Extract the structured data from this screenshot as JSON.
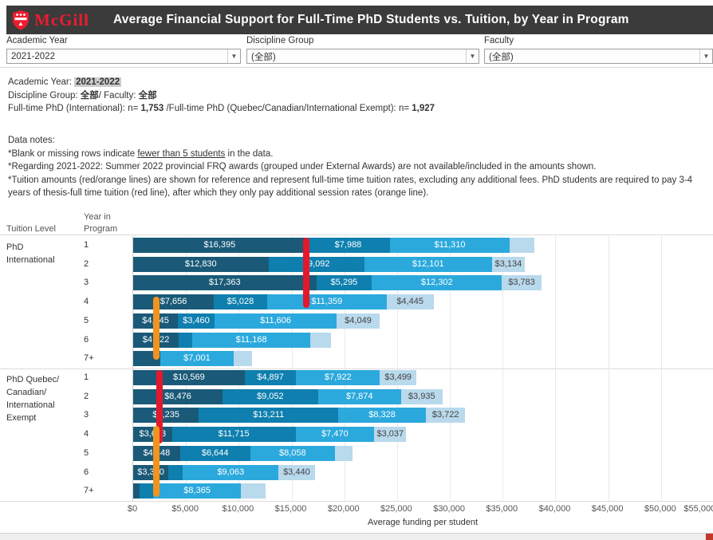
{
  "header": {
    "logo_text": "McGill",
    "title": "Average Financial Support for Full-Time PhD Students vs. Tuition, by Year in Program"
  },
  "filters": [
    {
      "label": "Academic Year",
      "value": "2021-2022"
    },
    {
      "label": "Discipline Group",
      "value": "(全部)"
    },
    {
      "label": "Faculty",
      "value": "(全部)"
    }
  ],
  "summary": {
    "l1a": "Academic Year: ",
    "l1b": "2021-2022",
    "l2a": "Discipline Group: ",
    "l2b": "全部",
    "l2c": "/ Faculty: ",
    "l2d": "全部",
    "l3a": "Full-time PhD (International): n= ",
    "l3b": "1,753",
    "l3c": " /Full-time PhD (Quebec/Canadian/International Exempt): n= ",
    "l3d": "1,927"
  },
  "notes": {
    "title": "Data notes:",
    "n1a": "*Blank or missing rows indicate ",
    "n1b": "fewer than 5 students",
    "n1c": " in the data.",
    "n2": "*Regarding 2021-2022: Summer 2022 provincial FRQ awards (grouped under External Awards) are not available/included in the amounts shown.",
    "n3": "*Tuition amounts (red/orange lines) are shown for reference and represent full-time time tuition rates, excluding any additional fees. PhD students are required to pay 3-4 years of thesis-full time tuition (red line), after which they only pay additional session rates (orange line)."
  },
  "chart_data": {
    "type": "bar",
    "orientation": "horizontal-stacked",
    "xlabel": "Average funding per student",
    "xlim": [
      0,
      55000
    ],
    "tick_values": [
      0,
      5000,
      10000,
      15000,
      20000,
      25000,
      30000,
      35000,
      40000,
      45000,
      50000,
      55000
    ],
    "tick_labels": [
      "$0",
      "$5,000",
      "$10,000",
      "$15,000",
      "$20,000",
      "$25,000",
      "$30,000",
      "$35,000",
      "$40,000",
      "$45,000",
      "$50,000",
      "$55,000"
    ],
    "col_headers": {
      "tuition_level": "Tuition Level",
      "year_label_line1": "Year in",
      "year_label_line2": "Program"
    },
    "segment_colors": {
      "dark": "#1a5a78",
      "medium": "#0e7fae",
      "light": "#2ba9dd",
      "pale": "#b9d9ec"
    },
    "line_colors": {
      "red": "#e4182d",
      "orange": "#f0941f"
    },
    "groups": [
      {
        "label_lines": [
          "PhD",
          "International"
        ],
        "tuition_lines": [
          {
            "type": "red",
            "value": 16400,
            "from_row": 1.0,
            "to_row": 4.7
          },
          {
            "type": "orange",
            "value": 2200,
            "from_row": 4.1,
            "to_row": 7.45
          }
        ],
        "rows": [
          {
            "year": "1",
            "segments": [
              [
                "dark",
                16395,
                "$16,395"
              ],
              [
                "medium",
                7988,
                "$7,988"
              ],
              [
                "light",
                11310,
                "$11,310"
              ],
              [
                "pale",
                2400,
                ""
              ]
            ]
          },
          {
            "year": "2",
            "segments": [
              [
                "dark",
                12830,
                "$12,830"
              ],
              [
                "medium",
                9092,
                "$9,092"
              ],
              [
                "light",
                12101,
                "$12,101"
              ],
              [
                "pale",
                3134,
                "$3,134"
              ]
            ]
          },
          {
            "year": "3",
            "segments": [
              [
                "dark",
                17363,
                "$17,363"
              ],
              [
                "medium",
                5295,
                "$5,295"
              ],
              [
                "light",
                12302,
                "$12,302"
              ],
              [
                "pale",
                3783,
                "$3,783"
              ]
            ]
          },
          {
            "year": "4",
            "segments": [
              [
                "dark",
                7656,
                "$7,656"
              ],
              [
                "medium",
                5028,
                "$5,028"
              ],
              [
                "light",
                11359,
                "$11,359"
              ],
              [
                "pale",
                4445,
                "$4,445"
              ]
            ]
          },
          {
            "year": "5",
            "segments": [
              [
                "dark",
                4245,
                "$4,245"
              ],
              [
                "medium",
                3460,
                "$3,460"
              ],
              [
                "light",
                11606,
                "$11,606"
              ],
              [
                "pale",
                4049,
                "$4,049"
              ]
            ]
          },
          {
            "year": "6",
            "segments": [
              [
                "dark",
                4322,
                "$4,322"
              ],
              [
                "medium",
                1300,
                ""
              ],
              [
                "light",
                11168,
                "$11,168"
              ],
              [
                "pale",
                2000,
                ""
              ]
            ]
          },
          {
            "year": "7+",
            "segments": [
              [
                "dark",
                2550,
                ""
              ],
              [
                "light",
                7001,
                "$7,001"
              ],
              [
                "pale",
                1700,
                ""
              ]
            ]
          }
        ]
      },
      {
        "label_lines": [
          "PhD Quebec/",
          "Canadian/",
          "International",
          "Exempt"
        ],
        "tuition_lines": [
          {
            "type": "red",
            "value": 2500,
            "from_row": 1.0,
            "to_row": 4.9
          },
          {
            "type": "orange",
            "value": 2200,
            "from_row": 3.95,
            "to_row": 7.7
          }
        ],
        "rows": [
          {
            "year": "1",
            "segments": [
              [
                "dark",
                10569,
                "$10,569"
              ],
              [
                "medium",
                4897,
                "$4,897"
              ],
              [
                "light",
                7922,
                "$7,922"
              ],
              [
                "pale",
                3499,
                "$3,499"
              ]
            ]
          },
          {
            "year": "2",
            "segments": [
              [
                "dark",
                8476,
                "$8,476"
              ],
              [
                "medium",
                9052,
                "$9,052"
              ],
              [
                "light",
                7874,
                "$7,874"
              ],
              [
                "pale",
                3935,
                "$3,935"
              ]
            ]
          },
          {
            "year": "3",
            "segments": [
              [
                "dark",
                6235,
                "$6,235"
              ],
              [
                "medium",
                13211,
                "$13,211"
              ],
              [
                "light",
                8328,
                "$8,328"
              ],
              [
                "pale",
                3722,
                "$3,722"
              ]
            ]
          },
          {
            "year": "4",
            "segments": [
              [
                "dark",
                3683,
                "$3,683"
              ],
              [
                "medium",
                11715,
                "$11,715"
              ],
              [
                "light",
                7470,
                "$7,470"
              ],
              [
                "pale",
                3037,
                "$3,037"
              ]
            ]
          },
          {
            "year": "5",
            "segments": [
              [
                "dark",
                4448,
                "$4,448"
              ],
              [
                "medium",
                6644,
                "$6,644"
              ],
              [
                "light",
                8058,
                "$8,058"
              ],
              [
                "pale",
                1650,
                ""
              ]
            ]
          },
          {
            "year": "6",
            "segments": [
              [
                "dark",
                3340,
                "$3,340"
              ],
              [
                "medium",
                1380,
                ""
              ],
              [
                "light",
                9063,
                "$9,063"
              ],
              [
                "pale",
                3440,
                "$3,440"
              ]
            ]
          },
          {
            "year": "7+",
            "segments": [
              [
                "dark",
                600,
                ""
              ],
              [
                "medium",
                1280,
                ""
              ],
              [
                "light",
                8365,
                "$8,365"
              ],
              [
                "pale",
                2300,
                ""
              ]
            ]
          }
        ]
      }
    ]
  }
}
